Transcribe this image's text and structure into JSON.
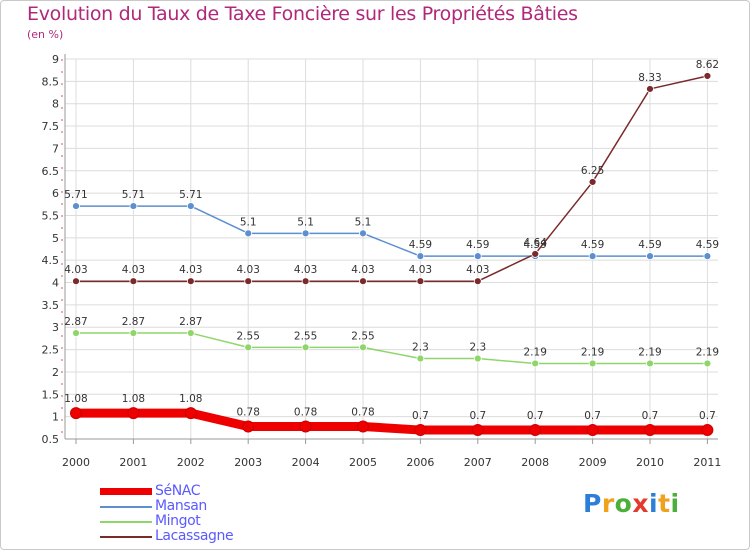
{
  "title": "Evolution du Taux de Taxe Foncière sur les Propriétés Bâties",
  "subtitle": "(en %)",
  "chart_data": {
    "type": "line",
    "title": "Evolution du Taux de Taxe Foncière sur les Propriétés Bâties",
    "ylabel": "(en %)",
    "xlabel": "",
    "ylim": [
      0.5,
      9
    ],
    "yticks": [
      "0.5",
      "1",
      "1.5",
      "2",
      "2.5",
      "3",
      "3.5",
      "4",
      "4.5",
      "5",
      "5.5",
      "6",
      "6.5",
      "7",
      "7.5",
      "8",
      "8.5",
      "9"
    ],
    "x": [
      "2000",
      "2001",
      "2002",
      "2003",
      "2004",
      "2005",
      "2006",
      "2007",
      "2008",
      "2009",
      "2010",
      "2011"
    ],
    "series": [
      {
        "name": "Mansan",
        "color": "#5b8fcf",
        "values": [
          5.71,
          5.71,
          5.71,
          5.1,
          5.1,
          5.1,
          4.59,
          4.59,
          4.59,
          4.59,
          4.59,
          4.59
        ],
        "labels": [
          "5.71",
          "5.71",
          "5.71",
          "5.1",
          "5.1",
          "5.1",
          "4.59",
          "4.59",
          "4.59",
          "4.59",
          "4.59",
          "4.59"
        ]
      },
      {
        "name": "Lacassagne",
        "color": "#7a2a2a",
        "values": [
          4.03,
          4.03,
          4.03,
          4.03,
          4.03,
          4.03,
          4.03,
          4.03,
          4.64,
          6.25,
          8.33,
          8.62
        ],
        "labels": [
          "4.03",
          "4.03",
          "4.03",
          "4.03",
          "4.03",
          "4.03",
          "4.03",
          "4.03",
          "4.64",
          "6.25",
          "8.33",
          "8.62"
        ]
      },
      {
        "name": "Mingot",
        "color": "#8fd66a",
        "values": [
          2.87,
          2.87,
          2.87,
          2.55,
          2.55,
          2.55,
          2.3,
          2.3,
          2.19,
          2.19,
          2.19,
          2.19
        ],
        "labels": [
          "2.87",
          "2.87",
          "2.87",
          "2.55",
          "2.55",
          "2.55",
          "2.3",
          "2.3",
          "2.19",
          "2.19",
          "2.19",
          "2.19"
        ]
      },
      {
        "name": "SéNAC",
        "color": "#ee0000",
        "values": [
          1.08,
          1.08,
          1.08,
          0.78,
          0.78,
          0.78,
          0.7,
          0.7,
          0.7,
          0.7,
          0.7,
          0.7
        ],
        "labels": [
          "1.08",
          "1.08",
          "1.08",
          "0.78",
          "0.78",
          "0.78",
          "0.7",
          "0.7",
          "0.7",
          "0.7",
          "0.7",
          "0.7"
        ]
      }
    ],
    "legend": [
      "SéNAC",
      "Mansan",
      "Mingot",
      "Lacassagne"
    ],
    "legend_position": "bottom-left"
  },
  "legend": {
    "items": [
      {
        "name": "SéNAC",
        "color": "#ee0000"
      },
      {
        "name": "Mansan",
        "color": "#5b8fcf"
      },
      {
        "name": "Mingot",
        "color": "#8fd66a"
      },
      {
        "name": "Lacassagne",
        "color": "#7a2a2a"
      }
    ]
  },
  "logo": {
    "letters": [
      "P",
      "r",
      "o",
      "x",
      "i",
      "t",
      "i"
    ],
    "colors": [
      "#2c7fd6",
      "#f0a21e",
      "#4caf3a",
      "#e53a2b",
      "#2c7fd6",
      "#f0a21e",
      "#4caf3a"
    ]
  }
}
